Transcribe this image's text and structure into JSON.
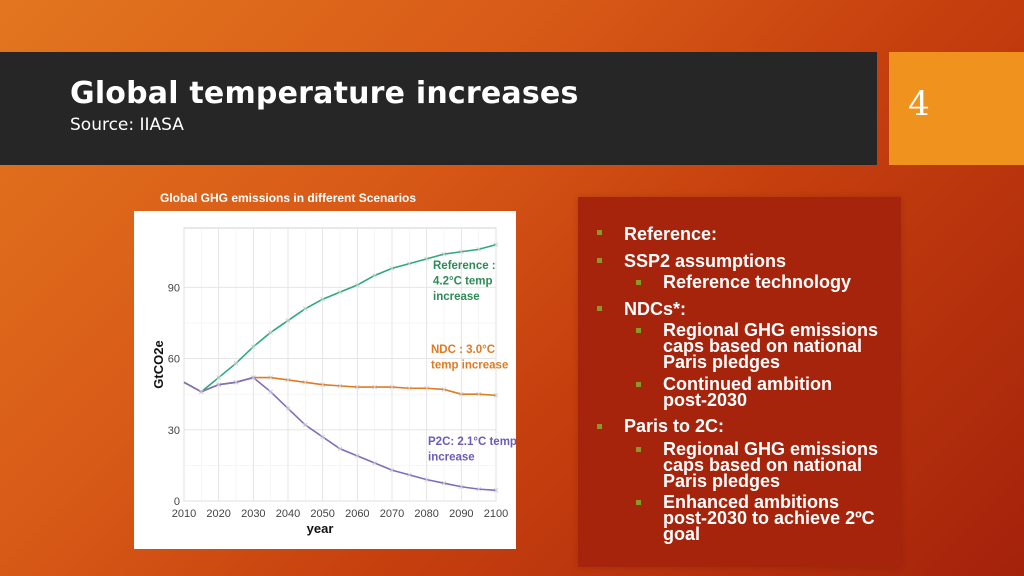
{
  "slide": {
    "title": "Global temperature increases",
    "subtitle": "Source: IIASA",
    "page_number": "4"
  },
  "chart_caption": "Global GHG emissions in different Scenarios",
  "chart_data": {
    "type": "line",
    "xlabel": "year",
    "ylabel": "GtCO2e",
    "xlim": [
      2010,
      2100
    ],
    "ylim": [
      0,
      115
    ],
    "x_ticks": [
      2010,
      2020,
      2030,
      2040,
      2050,
      2060,
      2070,
      2080,
      2090,
      2100
    ],
    "y_ticks": [
      0,
      30,
      60,
      90
    ],
    "grid": true,
    "legend": "none",
    "series": [
      {
        "name": "Reference : 4.2°C temp increase",
        "color": "#2eaa7a",
        "x": [
          2010,
          2015,
          2020,
          2025,
          2030,
          2035,
          2040,
          2045,
          2050,
          2055,
          2060,
          2065,
          2070,
          2075,
          2080,
          2085,
          2090,
          2095,
          2100
        ],
        "y": [
          50,
          46,
          52,
          58,
          65,
          71,
          76,
          81,
          85,
          88,
          91,
          95,
          98,
          100,
          102,
          104,
          105,
          106,
          108
        ]
      },
      {
        "name": "NDC : 3.0°C temp increase",
        "color": "#e07b22",
        "x": [
          2010,
          2015,
          2020,
          2025,
          2030,
          2035,
          2040,
          2045,
          2050,
          2055,
          2060,
          2065,
          2070,
          2075,
          2080,
          2085,
          2090,
          2095,
          2100
        ],
        "y": [
          50,
          46,
          49,
          50,
          52,
          52,
          51,
          50,
          49,
          48.5,
          48,
          48,
          48,
          47.5,
          47.5,
          47,
          45,
          45,
          44.5
        ]
      },
      {
        "name": "P2C: 2.1°C temp increase",
        "color": "#7d6fc0",
        "x": [
          2010,
          2015,
          2020,
          2025,
          2030,
          2035,
          2040,
          2045,
          2050,
          2055,
          2060,
          2065,
          2070,
          2075,
          2080,
          2085,
          2090,
          2095,
          2100
        ],
        "y": [
          50,
          46,
          49,
          50,
          52,
          46,
          39,
          32,
          27,
          22,
          19,
          16,
          13,
          11,
          9,
          7.5,
          6,
          5,
          4.5
        ]
      }
    ],
    "annotations": [
      {
        "lines": [
          "Reference :",
          "4.2°C temp",
          "increase"
        ],
        "color": "#2e8b57"
      },
      {
        "lines": [
          "NDC : 3.0°C",
          "temp increase"
        ],
        "color": "#e07b22"
      },
      {
        "lines": [
          "P2C: 2.1°C temp",
          "increase"
        ],
        "color": "#6a5cb8"
      }
    ]
  },
  "bullets": {
    "b1": "Reference:",
    "b2": "SSP2 assumptions",
    "b2a": "Reference technology",
    "b3": "NDCs*:",
    "b3a": [
      "Regional GHG emissions",
      "caps based on national",
      "Paris pledges"
    ],
    "b3b": [
      "Continued ambition",
      "post-2030"
    ],
    "b4": "Paris to 2C:",
    "b4a": [
      "Regional GHG emissions",
      "caps based on national",
      "Paris pledges"
    ],
    "b4b": [
      "Enhanced ambitions",
      "post-2030 to achieve 2ºC",
      "goal"
    ]
  }
}
